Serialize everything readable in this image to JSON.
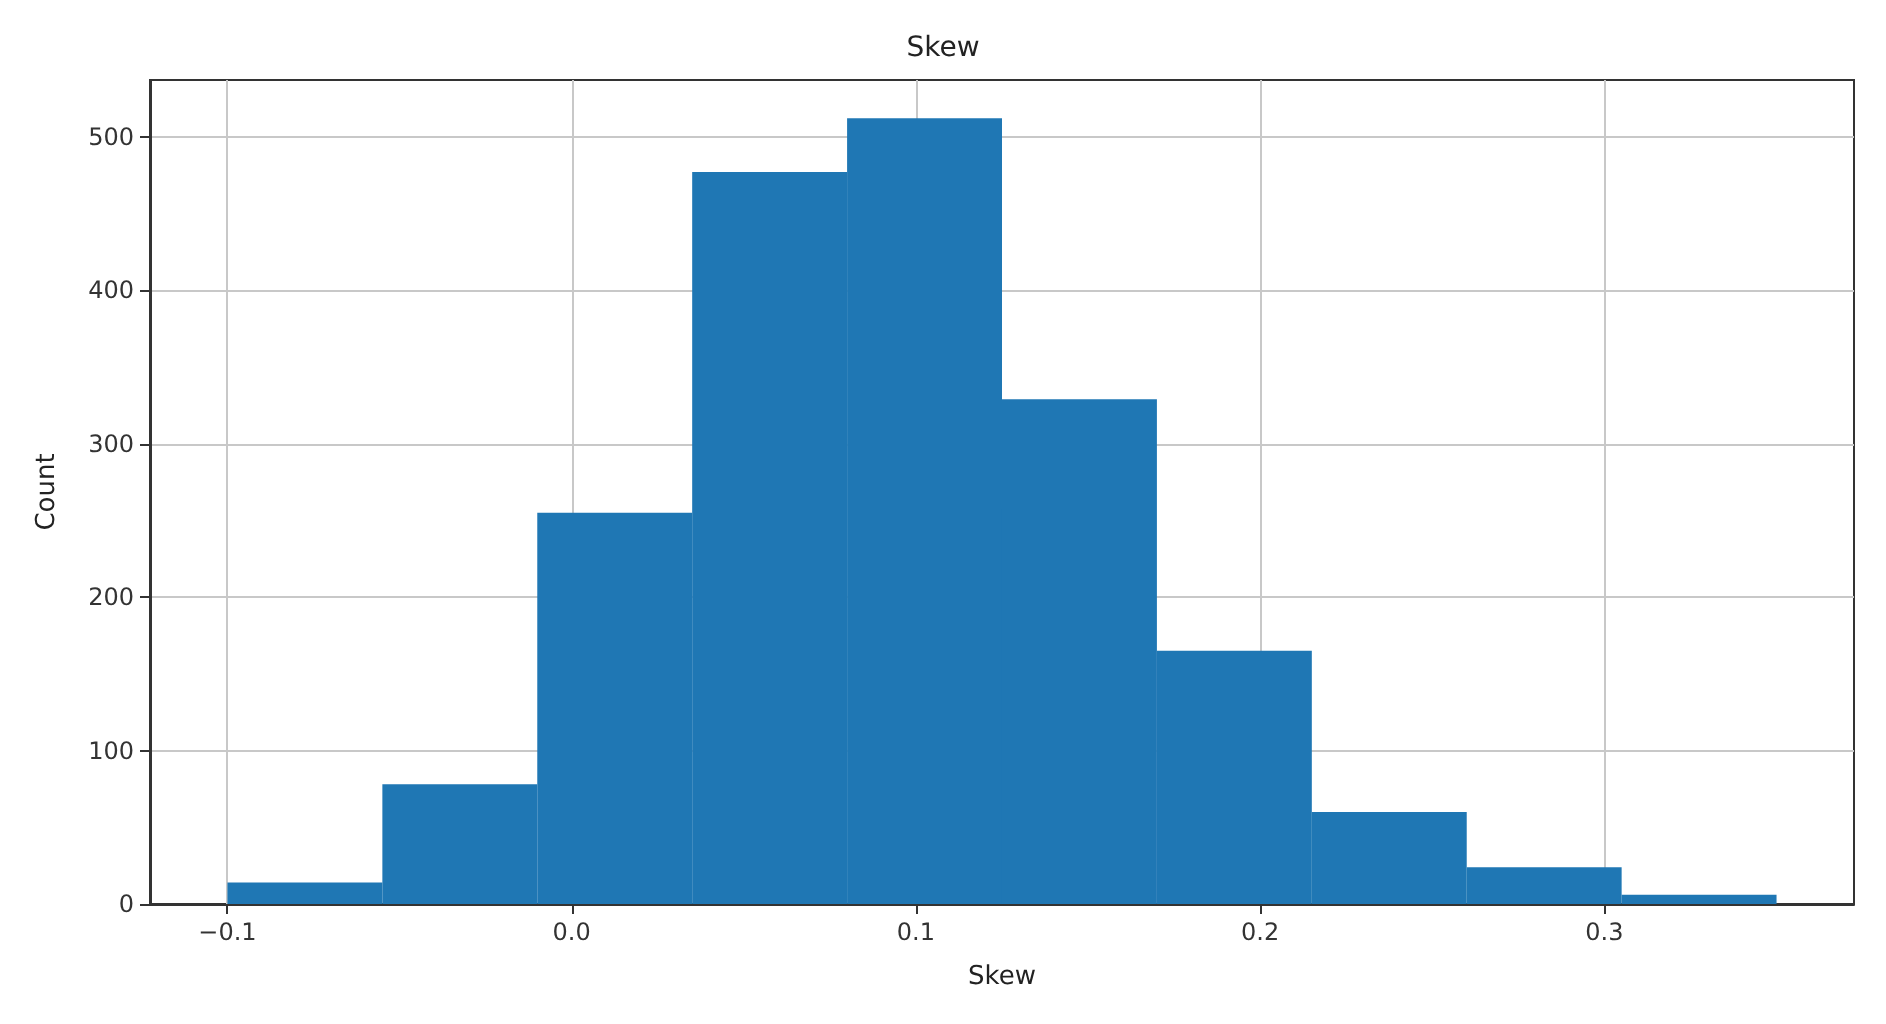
{
  "chart_data": {
    "type": "histogram",
    "title": "Skew",
    "xlabel": "Skew",
    "ylabel": "Count",
    "bins": [
      -0.1,
      -0.055,
      -0.01,
      0.035,
      0.08,
      0.125,
      0.17,
      0.215,
      0.26,
      0.305,
      0.35
    ],
    "values": [
      14,
      78,
      255,
      477,
      512,
      329,
      165,
      60,
      24,
      6
    ],
    "color": "#1f77b4",
    "xlim": [
      -0.1225,
      0.3725
    ],
    "xticks": [
      {
        "value": -0.1,
        "label": "−0.1"
      },
      {
        "value": 0,
        "label": "0.0"
      },
      {
        "value": 0.1,
        "label": "0.1"
      },
      {
        "value": 0.2,
        "label": "0.2"
      },
      {
        "value": 0.3,
        "label": "0.3"
      }
    ],
    "ylim": [
      0,
      537
    ],
    "yticks": [
      0,
      100,
      200,
      300,
      400,
      500
    ],
    "grid": true
  }
}
